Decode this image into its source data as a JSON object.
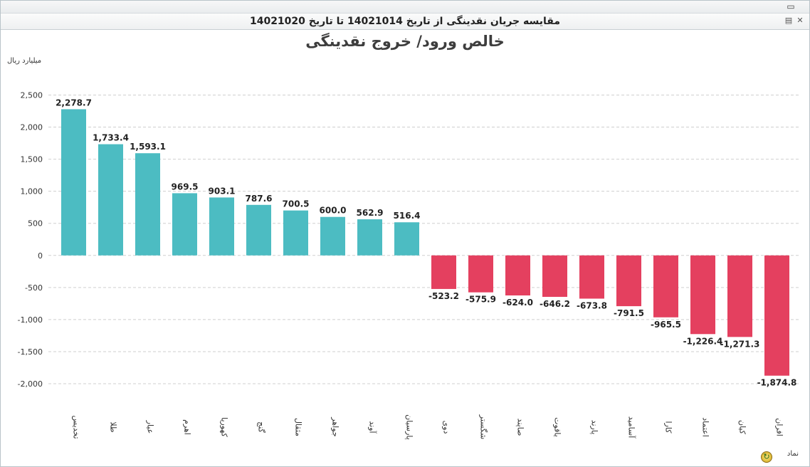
{
  "window": {
    "panel_title": "مقایسه جریان نقدینگی از تاریخ 14021014 تا تاریخ 14021020",
    "maximize_icon": "maximize-icon",
    "save_icon": "save-icon",
    "close_icon": "close-icon",
    "refresh_icon": "refresh-icon"
  },
  "chart_data": {
    "type": "bar",
    "title": "خالص ورود/ خروج نقدینگی",
    "ylabel": "میلیارد ریال",
    "xlabel": "نماد",
    "ylim": [
      -2000,
      2500
    ],
    "ytick_values": [
      2500,
      2000,
      1500,
      1000,
      500,
      0,
      -500,
      -1000,
      -1500,
      -2000
    ],
    "ytick_labels": [
      "2,500",
      "2,000",
      "1,500",
      "1,000",
      "500",
      "0",
      "-500",
      "-1,000",
      "-1,500",
      "-2,000"
    ],
    "grid": true,
    "legend": "none",
    "categories": [
      "تخدیس",
      "طلا",
      "عیار",
      "اهرم",
      "کهوریا",
      "گنج",
      "مثقال",
      "جواهر",
      "آوند",
      "پارسیان",
      "دوی",
      "شگستر",
      "صاپند",
      "یاقوت",
      "پارند",
      "آسامید",
      "کارا",
      "اعتماد",
      "کیان",
      "افران"
    ],
    "values": [
      2278.7,
      1733.4,
      1593.1,
      969.5,
      903.1,
      787.6,
      700.5,
      600.0,
      562.9,
      516.4,
      -523.2,
      -575.9,
      -624.0,
      -646.2,
      -673.8,
      -791.5,
      -965.5,
      -1226.4,
      -1271.3,
      -1874.8
    ],
    "value_labels": [
      "2,278.7",
      "1,733.4",
      "1,593.1",
      "969.5",
      "903.1",
      "787.6",
      "700.5",
      "600.0",
      "562.9",
      "516.4",
      "-523.2",
      "-575.9",
      "-624.0",
      "-646.2",
      "-673.8",
      "-791.5",
      "-965.5",
      "-1,226.4",
      "-1,271.3",
      "-1,874.8"
    ],
    "colors": {
      "positive": "#4cbcc2",
      "negative": "#e4405f",
      "grid": "#cfcfcf",
      "text": "#222222"
    }
  }
}
